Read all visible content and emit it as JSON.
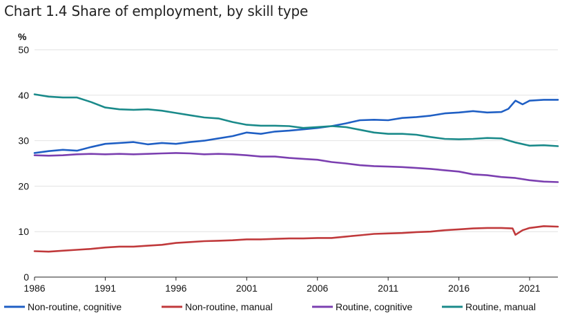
{
  "chart_data": {
    "type": "line",
    "title": "Chart 1.4 Share of employment, by skill type",
    "ylabel": "%",
    "xlabel": "",
    "xlim": [
      1986,
      2023
    ],
    "ylim": [
      0,
      50
    ],
    "yticks": [
      0,
      10,
      20,
      30,
      40,
      50
    ],
    "yticklabels": [
      "0",
      "10",
      "20",
      "30",
      "40",
      "50"
    ],
    "xticks": [
      1986,
      1991,
      1996,
      2001,
      2006,
      2011,
      2016,
      2021
    ],
    "xticklabels": [
      "1986",
      "1991",
      "1996",
      "2001",
      "2006",
      "2011",
      "2016",
      "2021"
    ],
    "grid": "horizontal",
    "legend_position": "bottom",
    "series": [
      {
        "name": "Non-routine, cognitive",
        "color": "#1f5fc4",
        "x": [
          1986,
          1987,
          1988,
          1989,
          1990,
          1991,
          1992,
          1993,
          1994,
          1995,
          1996,
          1997,
          1998,
          1999,
          2000,
          2001,
          2002,
          2003,
          2004,
          2005,
          2006,
          2007,
          2008,
          2009,
          2010,
          2011,
          2012,
          2013,
          2014,
          2015,
          2016,
          2017,
          2018,
          2019,
          2019.5,
          2020,
          2020.5,
          2021,
          2022,
          2023
        ],
        "y": [
          27.3,
          27.7,
          28.0,
          27.8,
          28.6,
          29.3,
          29.5,
          29.7,
          29.2,
          29.5,
          29.3,
          29.7,
          30.0,
          30.5,
          31.0,
          31.8,
          31.5,
          32.0,
          32.2,
          32.5,
          32.8,
          33.2,
          33.8,
          34.5,
          34.6,
          34.5,
          35.0,
          35.2,
          35.5,
          36.0,
          36.2,
          36.5,
          36.2,
          36.3,
          37.0,
          38.8,
          38.0,
          38.8,
          39.0,
          39.0
        ]
      },
      {
        "name": "Non-routine, manual",
        "color": "#c0393b",
        "x": [
          1986,
          1987,
          1988,
          1989,
          1990,
          1991,
          1992,
          1993,
          1994,
          1995,
          1996,
          1997,
          1998,
          1999,
          2000,
          2001,
          2002,
          2003,
          2004,
          2005,
          2006,
          2007,
          2008,
          2009,
          2010,
          2011,
          2012,
          2013,
          2014,
          2015,
          2016,
          2017,
          2018,
          2019,
          2019.8,
          2020,
          2020.5,
          2021,
          2022,
          2023
        ],
        "y": [
          5.7,
          5.6,
          5.8,
          6.0,
          6.2,
          6.5,
          6.7,
          6.7,
          6.9,
          7.1,
          7.5,
          7.7,
          7.9,
          8.0,
          8.1,
          8.3,
          8.3,
          8.4,
          8.5,
          8.5,
          8.6,
          8.6,
          8.9,
          9.2,
          9.5,
          9.6,
          9.7,
          9.9,
          10.0,
          10.3,
          10.5,
          10.7,
          10.8,
          10.8,
          10.7,
          9.3,
          10.3,
          10.8,
          11.2,
          11.1
        ]
      },
      {
        "name": "Routine, cognitive",
        "color": "#7b3fb0",
        "x": [
          1986,
          1987,
          1988,
          1989,
          1990,
          1991,
          1992,
          1993,
          1994,
          1995,
          1996,
          1997,
          1998,
          1999,
          2000,
          2001,
          2002,
          2003,
          2004,
          2005,
          2006,
          2007,
          2008,
          2009,
          2010,
          2011,
          2012,
          2013,
          2014,
          2015,
          2016,
          2017,
          2018,
          2019,
          2020,
          2021,
          2022,
          2023
        ],
        "y": [
          26.8,
          26.7,
          26.8,
          27.0,
          27.1,
          27.0,
          27.1,
          27.0,
          27.1,
          27.2,
          27.3,
          27.2,
          27.0,
          27.1,
          27.0,
          26.8,
          26.5,
          26.5,
          26.2,
          26.0,
          25.8,
          25.3,
          25.0,
          24.6,
          24.4,
          24.3,
          24.2,
          24.0,
          23.8,
          23.5,
          23.2,
          22.6,
          22.4,
          22.0,
          21.8,
          21.3,
          21.0,
          20.9
        ]
      },
      {
        "name": "Routine, manual",
        "color": "#1a8a8a",
        "x": [
          1986,
          1987,
          1988,
          1989,
          1990,
          1991,
          1992,
          1993,
          1994,
          1995,
          1996,
          1997,
          1998,
          1999,
          2000,
          2001,
          2002,
          2003,
          2004,
          2005,
          2006,
          2007,
          2008,
          2009,
          2010,
          2011,
          2012,
          2013,
          2014,
          2015,
          2016,
          2017,
          2018,
          2019,
          2020,
          2021,
          2022,
          2023
        ],
        "y": [
          40.2,
          39.7,
          39.5,
          39.5,
          38.5,
          37.3,
          36.9,
          36.8,
          36.9,
          36.6,
          36.1,
          35.6,
          35.1,
          34.9,
          34.1,
          33.5,
          33.3,
          33.3,
          33.2,
          32.8,
          33.0,
          33.2,
          33.0,
          32.4,
          31.8,
          31.5,
          31.5,
          31.3,
          30.8,
          30.4,
          30.3,
          30.4,
          30.6,
          30.5,
          29.6,
          28.9,
          29.0,
          28.8
        ]
      }
    ]
  }
}
